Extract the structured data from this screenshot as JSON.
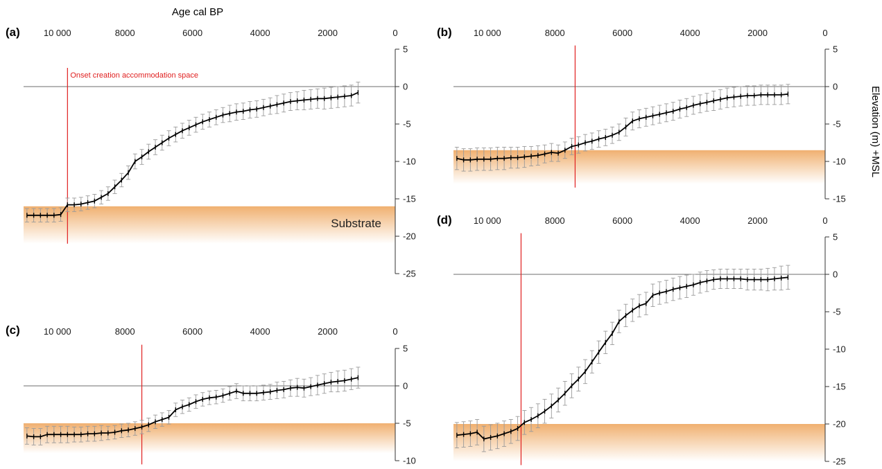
{
  "figure": {
    "top_axis_title": "Age cal BP",
    "right_axis_title": "Elevation (m) +MSL"
  },
  "colors": {
    "curve": "#000000",
    "error_bar": "#9a9a9a",
    "onset_line": "#e02020",
    "zero_line": "#6e6e6e",
    "substrate_top": "#f0b070",
    "substrate_bottom": "#ffffff"
  },
  "chart_data": [
    {
      "panel": "(a)",
      "type": "line",
      "x_ticks": [
        "10 000",
        "8000",
        "6000",
        "4000",
        "2000",
        "0"
      ],
      "x_tick_values": [
        10000,
        8000,
        6000,
        4000,
        2000,
        0
      ],
      "xlim": [
        11000,
        0
      ],
      "ylim": [
        -25,
        5
      ],
      "y_ticks": [
        "5",
        "0",
        "-5",
        "-10",
        "-15",
        "-20",
        "-25"
      ],
      "y_tick_values": [
        5,
        0,
        -5,
        -10,
        -15,
        -20,
        -25
      ],
      "show_top_axis_title": true,
      "show_right_axis_title": false,
      "onset_age": 9700,
      "onset_line_range": [
        2.5,
        -21
      ],
      "onset_label": "Onset creation accommodation space",
      "substrate_top": -16,
      "substrate_bottom": -21,
      "substrate_label": "Substrate",
      "series": [
        {
          "x": [
            10900,
            10700,
            10500,
            10300,
            10100,
            9900,
            9700,
            9500,
            9300,
            9100,
            8900,
            8700,
            8500,
            8300,
            8100,
            7900,
            7700,
            7500,
            7300,
            7100,
            6900,
            6700,
            6500,
            6300,
            6100,
            5900,
            5700,
            5500,
            5300,
            5100,
            4900,
            4700,
            4500,
            4300,
            4100,
            3900,
            3700,
            3500,
            3300,
            3100,
            2900,
            2700,
            2500,
            2300,
            2100,
            1900,
            1700,
            1500,
            1300,
            1100
          ],
          "y": [
            -17.2,
            -17.2,
            -17.2,
            -17.2,
            -17.2,
            -17.1,
            -15.8,
            -15.8,
            -15.7,
            -15.5,
            -15.3,
            -14.8,
            -14.3,
            -13.4,
            -12.5,
            -11.5,
            -10.0,
            -9.4,
            -8.7,
            -8.1,
            -7.5,
            -6.9,
            -6.4,
            -5.9,
            -5.5,
            -5.1,
            -4.7,
            -4.4,
            -4.1,
            -3.8,
            -3.6,
            -3.4,
            -3.3,
            -3.1,
            -3.0,
            -2.8,
            -2.6,
            -2.4,
            -2.2,
            -2.0,
            -1.9,
            -1.8,
            -1.7,
            -1.6,
            -1.6,
            -1.5,
            -1.4,
            -1.3,
            -1.2,
            -0.8
          ],
          "err": [
            0.9,
            0.9,
            0.9,
            0.9,
            0.9,
            0.9,
            0.9,
            0.9,
            0.9,
            0.9,
            0.9,
            0.9,
            0.9,
            0.9,
            0.9,
            0.9,
            1.0,
            1.0,
            1.0,
            1.0,
            1.0,
            1.0,
            1.0,
            1.0,
            1.0,
            1.0,
            1.0,
            1.0,
            1.0,
            1.0,
            1.1,
            1.1,
            1.1,
            1.1,
            1.1,
            1.1,
            1.1,
            1.2,
            1.2,
            1.2,
            1.2,
            1.3,
            1.3,
            1.3,
            1.4,
            1.4,
            1.4,
            1.4,
            1.4,
            1.4
          ]
        }
      ]
    },
    {
      "panel": "(b)",
      "type": "line",
      "x_ticks": [
        "10 000",
        "8000",
        "6000",
        "4000",
        "2000",
        "0"
      ],
      "x_tick_values": [
        10000,
        8000,
        6000,
        4000,
        2000,
        0
      ],
      "xlim": [
        11000,
        0
      ],
      "ylim": [
        -15,
        5
      ],
      "y_ticks": [
        "5",
        "0",
        "-5",
        "-10",
        "-15"
      ],
      "y_tick_values": [
        5,
        0,
        -5,
        -10,
        -15
      ],
      "show_top_axis_title": false,
      "show_right_axis_title": true,
      "onset_age": 7400,
      "onset_line_range": [
        5.5,
        -13.5
      ],
      "onset_label": "",
      "substrate_top": -8.5,
      "substrate_bottom": -13,
      "substrate_label": "",
      "series": [
        {
          "x": [
            10900,
            10700,
            10500,
            10300,
            10100,
            9900,
            9700,
            9500,
            9300,
            9100,
            8900,
            8700,
            8500,
            8300,
            8100,
            7900,
            7700,
            7500,
            7300,
            7100,
            6900,
            6700,
            6500,
            6300,
            6100,
            5900,
            5700,
            5500,
            5300,
            5100,
            4900,
            4700,
            4500,
            4300,
            4100,
            3900,
            3700,
            3500,
            3300,
            3100,
            2900,
            2700,
            2500,
            2300,
            2100,
            1900,
            1700,
            1500,
            1300,
            1100
          ],
          "y": [
            -9.6,
            -9.8,
            -9.8,
            -9.7,
            -9.7,
            -9.7,
            -9.6,
            -9.6,
            -9.5,
            -9.5,
            -9.4,
            -9.3,
            -9.2,
            -9.0,
            -8.8,
            -8.9,
            -8.5,
            -8.0,
            -7.8,
            -7.5,
            -7.3,
            -7.0,
            -6.8,
            -6.5,
            -6.1,
            -5.4,
            -4.6,
            -4.3,
            -4.1,
            -3.9,
            -3.7,
            -3.5,
            -3.3,
            -3.0,
            -2.8,
            -2.5,
            -2.3,
            -2.1,
            -1.9,
            -1.7,
            -1.5,
            -1.4,
            -1.3,
            -1.2,
            -1.2,
            -1.1,
            -1.1,
            -1.1,
            -1.1,
            -1.0
          ],
          "err": [
            1.5,
            1.5,
            1.5,
            1.5,
            1.5,
            1.5,
            1.5,
            1.5,
            1.4,
            1.4,
            1.4,
            1.3,
            1.3,
            1.2,
            1.2,
            1.1,
            1.1,
            1.1,
            1.1,
            1.1,
            1.1,
            1.1,
            1.1,
            1.1,
            1.1,
            1.2,
            1.2,
            1.2,
            1.2,
            1.2,
            1.2,
            1.2,
            1.2,
            1.2,
            1.2,
            1.2,
            1.2,
            1.2,
            1.3,
            1.3,
            1.3,
            1.3,
            1.3,
            1.3,
            1.3,
            1.3,
            1.3,
            1.3,
            1.3,
            1.3
          ]
        }
      ]
    },
    {
      "panel": "(c)",
      "type": "line",
      "x_ticks": [
        "10 000",
        "8000",
        "6000",
        "4000",
        "2000",
        "0"
      ],
      "x_tick_values": [
        10000,
        8000,
        6000,
        4000,
        2000,
        0
      ],
      "xlim": [
        11000,
        0
      ],
      "ylim": [
        -10,
        5
      ],
      "y_ticks": [
        "5",
        "0",
        "-5",
        "-10"
      ],
      "y_tick_values": [
        5,
        0,
        -5,
        -10
      ],
      "show_top_axis_title": false,
      "show_right_axis_title": false,
      "onset_age": 7500,
      "onset_line_range": [
        5.5,
        -10.5
      ],
      "onset_label": "",
      "substrate_top": -5,
      "substrate_bottom": -9,
      "substrate_label": "",
      "series": [
        {
          "x": [
            10900,
            10700,
            10500,
            10300,
            10100,
            9900,
            9700,
            9500,
            9300,
            9100,
            8900,
            8700,
            8500,
            8300,
            8100,
            7900,
            7700,
            7500,
            7300,
            7100,
            6900,
            6700,
            6500,
            6300,
            6100,
            5900,
            5700,
            5500,
            5300,
            5100,
            4900,
            4700,
            4500,
            4300,
            4100,
            3900,
            3700,
            3500,
            3300,
            3100,
            2900,
            2700,
            2500,
            2300,
            2100,
            1900,
            1700,
            1500,
            1300,
            1100
          ],
          "y": [
            -6.7,
            -6.8,
            -6.8,
            -6.5,
            -6.5,
            -6.5,
            -6.5,
            -6.5,
            -6.5,
            -6.4,
            -6.4,
            -6.3,
            -6.3,
            -6.2,
            -6.0,
            -5.9,
            -5.7,
            -5.5,
            -5.2,
            -4.8,
            -4.5,
            -4.2,
            -3.2,
            -2.8,
            -2.5,
            -2.1,
            -1.8,
            -1.6,
            -1.5,
            -1.3,
            -1.0,
            -0.7,
            -1.0,
            -1.0,
            -1.0,
            -0.9,
            -0.8,
            -0.6,
            -0.5,
            -0.3,
            -0.2,
            -0.3,
            -0.1,
            0.1,
            0.3,
            0.5,
            0.6,
            0.7,
            0.9,
            1.1
          ],
          "err": [
            1.1,
            1.1,
            1.1,
            1.1,
            1.1,
            1.1,
            1.1,
            1.0,
            1.0,
            1.0,
            1.0,
            1.0,
            0.9,
            0.9,
            0.9,
            0.9,
            0.9,
            0.9,
            0.9,
            0.9,
            0.9,
            0.9,
            0.9,
            0.9,
            0.9,
            0.9,
            0.9,
            0.9,
            0.9,
            0.9,
            0.9,
            1.0,
            1.0,
            1.0,
            1.0,
            1.0,
            1.0,
            1.1,
            1.1,
            1.1,
            1.2,
            1.2,
            1.2,
            1.3,
            1.3,
            1.3,
            1.4,
            1.4,
            1.4,
            1.4
          ]
        }
      ]
    },
    {
      "panel": "(d)",
      "type": "line",
      "x_ticks": [
        "10 000",
        "8000",
        "6000",
        "4000",
        "2000",
        "0"
      ],
      "x_tick_values": [
        10000,
        8000,
        6000,
        4000,
        2000,
        0
      ],
      "xlim": [
        11000,
        0
      ],
      "ylim": [
        -25,
        5
      ],
      "y_ticks": [
        "5",
        "0",
        "-5",
        "-10",
        "-15",
        "-20",
        "-25"
      ],
      "y_tick_values": [
        5,
        0,
        -5,
        -10,
        -15,
        -20,
        -25
      ],
      "show_top_axis_title": false,
      "show_right_axis_title": false,
      "onset_age": 9000,
      "onset_line_range": [
        5.5,
        -25.5
      ],
      "onset_label": "",
      "substrate_top": -20,
      "substrate_bottom": -25,
      "substrate_label": "",
      "series": [
        {
          "x": [
            10900,
            10700,
            10500,
            10300,
            10100,
            9900,
            9700,
            9500,
            9300,
            9100,
            8900,
            8700,
            8500,
            8300,
            8100,
            7900,
            7700,
            7500,
            7300,
            7100,
            6900,
            6700,
            6500,
            6300,
            6100,
            5900,
            5700,
            5500,
            5300,
            5100,
            4900,
            4700,
            4500,
            4300,
            4100,
            3900,
            3700,
            3500,
            3300,
            3100,
            2900,
            2700,
            2500,
            2300,
            2100,
            1900,
            1700,
            1500,
            1300,
            1100
          ],
          "y": [
            -21.5,
            -21.4,
            -21.3,
            -21.1,
            -22.0,
            -21.8,
            -21.6,
            -21.3,
            -21.0,
            -20.6,
            -19.8,
            -19.4,
            -18.9,
            -18.3,
            -17.6,
            -16.8,
            -15.9,
            -14.9,
            -14.0,
            -13.0,
            -11.7,
            -10.4,
            -9.1,
            -7.9,
            -6.3,
            -5.5,
            -4.8,
            -4.2,
            -3.9,
            -2.8,
            -2.5,
            -2.3,
            -2.0,
            -1.8,
            -1.6,
            -1.4,
            -1.1,
            -0.9,
            -0.7,
            -0.6,
            -0.6,
            -0.6,
            -0.6,
            -0.7,
            -0.7,
            -0.7,
            -0.7,
            -0.6,
            -0.5,
            -0.4
          ],
          "err": [
            1.7,
            1.7,
            1.7,
            1.7,
            1.7,
            1.7,
            1.7,
            1.7,
            1.6,
            1.6,
            1.6,
            1.6,
            1.6,
            1.6,
            1.6,
            1.6,
            1.6,
            1.6,
            1.6,
            1.6,
            1.5,
            1.5,
            1.5,
            1.5,
            1.5,
            1.5,
            1.5,
            1.5,
            1.5,
            1.5,
            1.5,
            1.5,
            1.5,
            1.5,
            1.5,
            1.4,
            1.4,
            1.4,
            1.3,
            1.3,
            1.3,
            1.3,
            1.3,
            1.4,
            1.4,
            1.4,
            1.5,
            1.5,
            1.6,
            1.6
          ]
        }
      ]
    }
  ]
}
